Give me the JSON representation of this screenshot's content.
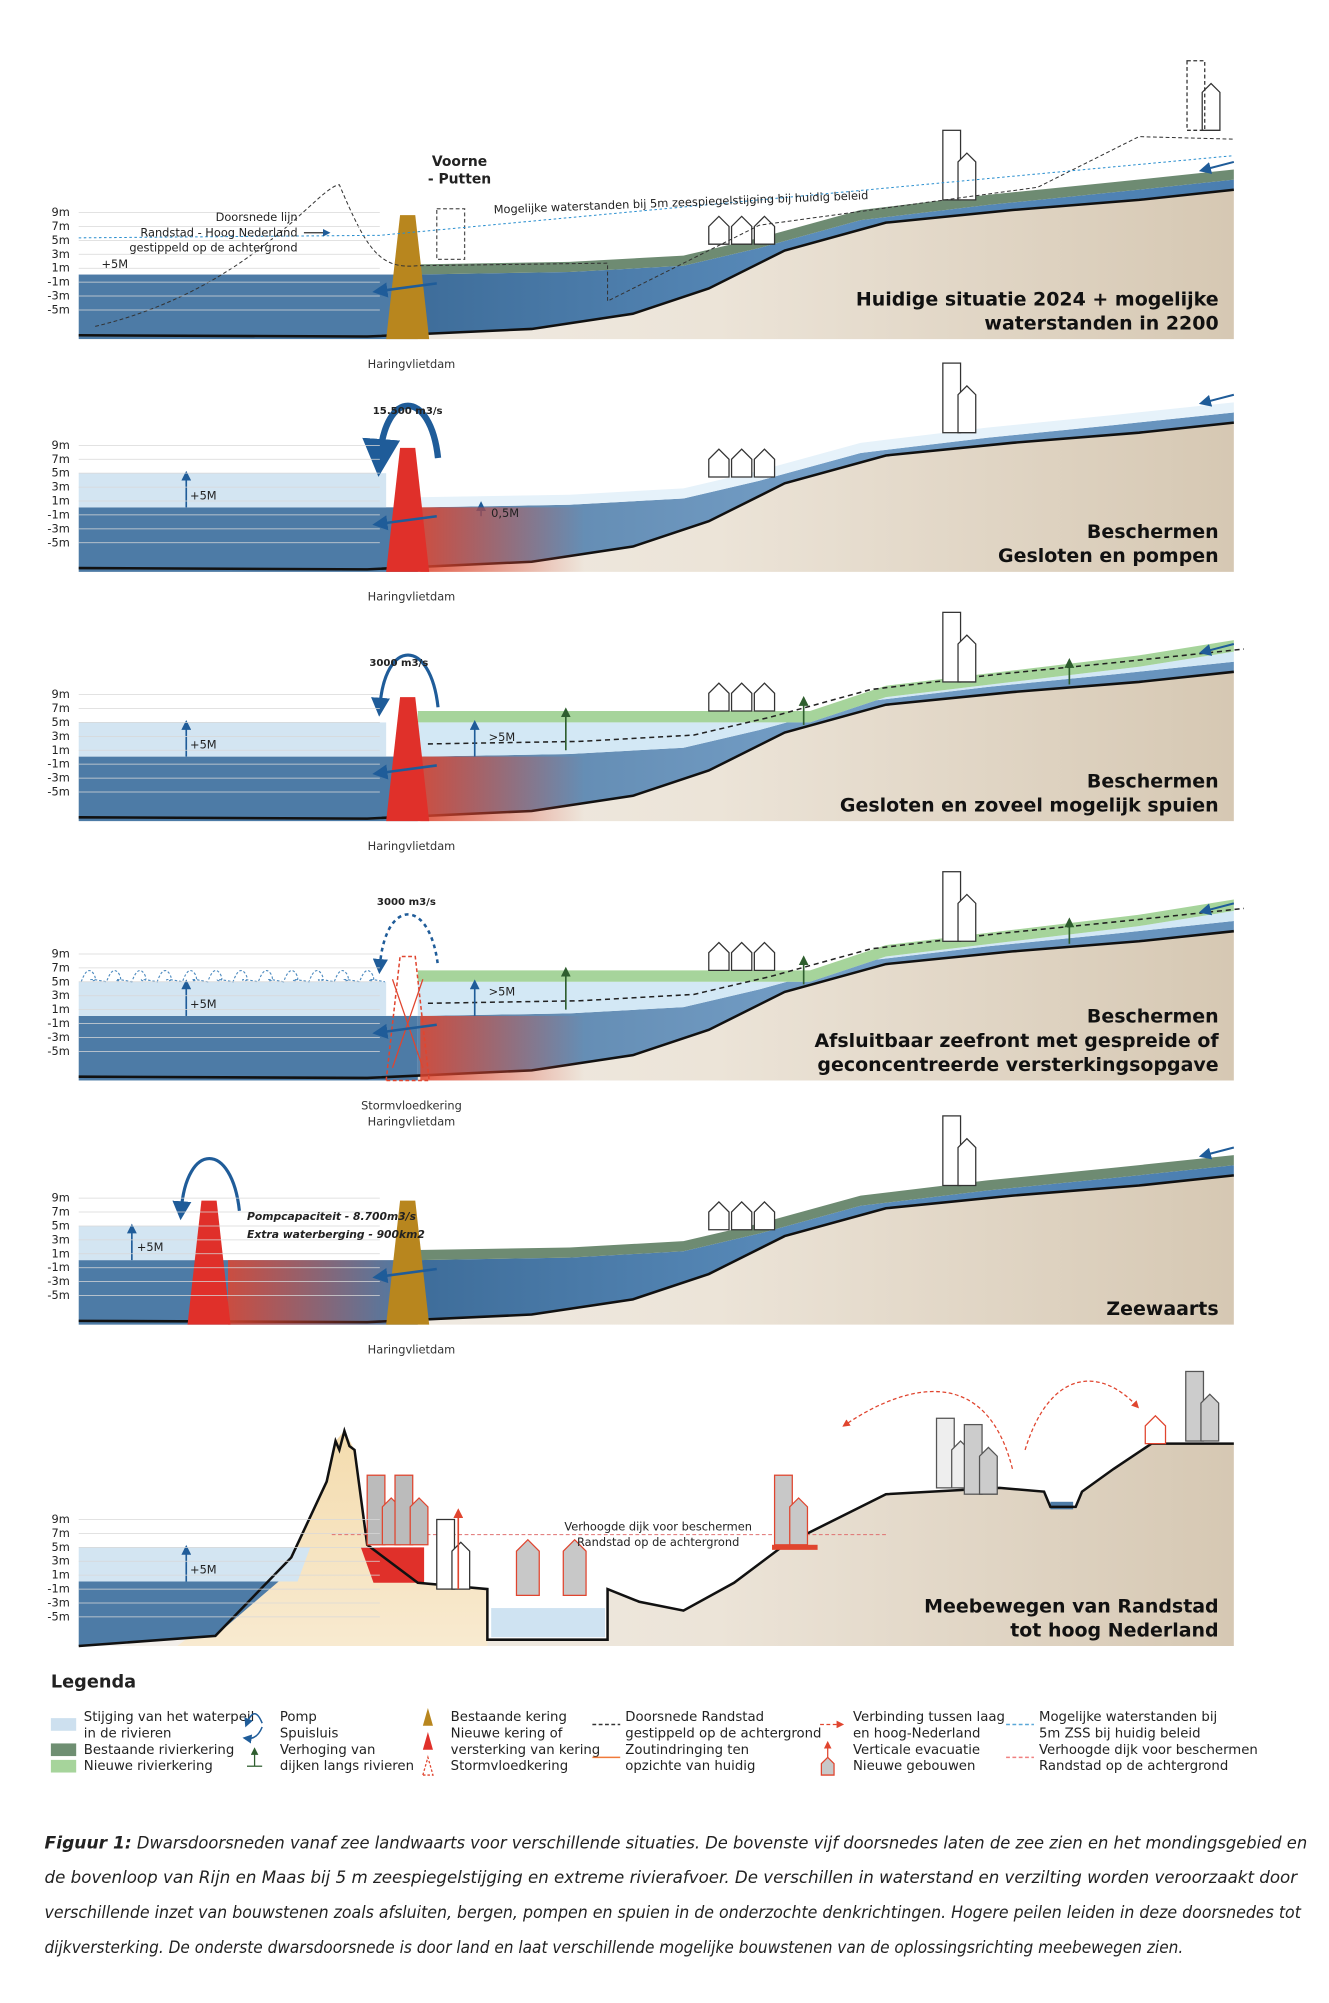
{
  "axis_labels": [
    "9m",
    "7m",
    "5m",
    "3m",
    "1m",
    "-1m",
    "-3m",
    "-5m"
  ],
  "panels": [
    {
      "title": [
        "Huidige situatie 2024 + mogelijke",
        "waterstanden in 2200"
      ],
      "dam_label": [
        "Haringvlietdam"
      ],
      "annotations": [
        "Voorne",
        "- Putten",
        "Doorsnede lijn",
        "Randstad - Hoog Nederland",
        "gestippeld op de achtergrond",
        "Mogelijke waterstanden bij 5m zeespiegelstijging bij huidig beleid",
        "+5M"
      ]
    },
    {
      "title": [
        "Beschermen",
        "Gesloten en pompen"
      ],
      "dam_label": [
        "Haringvlietdam"
      ],
      "annotations": [
        "15.500 m3/s",
        "+5M",
        "0,5M"
      ]
    },
    {
      "title": [
        "Beschermen",
        "Gesloten en zoveel mogelijk spuien"
      ],
      "dam_label": [
        "Haringvlietdam"
      ],
      "annotations": [
        "3000 m3/s",
        "+5M",
        ">5M"
      ]
    },
    {
      "title": [
        "Beschermen",
        "Afsluitbaar zeefront met gespreide of",
        "geconcentreerde versterkingsopgave"
      ],
      "dam_label": [
        "Stormvloedkering",
        "Haringvlietdam"
      ],
      "annotations": [
        "3000 m3/s",
        "+5M",
        ">5M"
      ]
    },
    {
      "title": [
        "Zeewaarts"
      ],
      "dam_label": [
        "Haringvlietdam"
      ],
      "annotations": [
        "Pompcapaciteit - 8.700m3/s",
        "Extra waterberging - 900km2",
        "+5M"
      ]
    },
    {
      "title": [
        "Meebewegen van Randstad",
        "tot hoog Nederland"
      ],
      "annotations": [
        "+5M",
        "Verhoogde dijk voor beschermen",
        "Randstad op de achtergrond"
      ]
    }
  ],
  "legend": {
    "title": "Legenda",
    "columns": [
      [
        [
          "Stijging van het waterpeil",
          "in de rivieren"
        ],
        [
          "Bestaande rivierkering"
        ],
        [
          "Nieuwe rivierkering"
        ]
      ],
      [
        [
          "Pomp"
        ],
        [
          "Spuisluis"
        ],
        [
          "Verhoging van",
          "dijken langs rivieren"
        ]
      ],
      [
        [
          "Bestaande kering"
        ],
        [
          "Nieuwe kering of",
          "versterking van kering"
        ],
        [
          "Stormvloedkering"
        ]
      ],
      [
        [
          "Doorsnede Randstad",
          "gestippeld op de achtergrond"
        ],
        [
          "Zoutindringing ten",
          "opzichte van huidig"
        ]
      ],
      [
        [
          "Verbinding tussen laag",
          "en hoog-Nederland"
        ],
        [
          "Verticale evacuatie"
        ],
        [
          "Nieuwe gebouwen"
        ]
      ],
      [
        [
          "Mogelijke waterstanden bij",
          "5m ZSS bij huidig beleid"
        ],
        [
          "Verhoogde dijk voor beschermen",
          "Randstad op de  achtergrond"
        ]
      ]
    ]
  },
  "caption": {
    "lead": "Figuur 1:",
    "lines": [
      "Dwarsdoorsneden vanaf zee landwaarts voor verschillende situaties. De bovenste vijf doorsnedes laten de zee zien en het mondingsgebied en",
      "de bovenloop van Rijn en Maas bij 5 m zeespiegelstijging en extreme rivierafvoer. De verschillen in waterstand en verzilting worden veroorzaakt door",
      "verschillende inzet van bouwstenen zoals afsluiten, bergen, pompen en spuien in de onderzochte denkrichtingen. Hogere peilen leiden in deze doorsnedes tot",
      "dijkversterking. De onderste dwarsdoorsnede is door land en laat verschillende mogelijke bouwstenen van de oplossingsrichting meebewegen zien."
    ]
  }
}
